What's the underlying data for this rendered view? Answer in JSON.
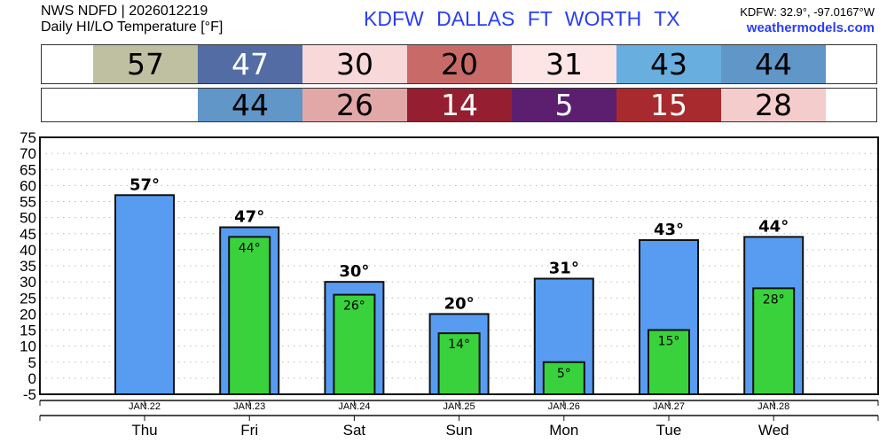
{
  "header": {
    "source": "NWS NDFD | 2026012219",
    "subtitle": "Daily HI/LO Temperature [°F]",
    "title": "KDFW   DALLAS FT WORTH TX",
    "coords": "KDFW: 32.9°, -97.0167°W",
    "site": "weathermodels.com"
  },
  "hi_cells": [
    {
      "value": "57",
      "bg": "#bfc0a2",
      "fg": "#000000"
    },
    {
      "value": "47",
      "bg": "#536ca4",
      "fg": "#ffffff"
    },
    {
      "value": "30",
      "bg": "#f8d8d9",
      "fg": "#000000"
    },
    {
      "value": "20",
      "bg": "#c76a68",
      "fg": "#000000"
    },
    {
      "value": "31",
      "bg": "#fde5e6",
      "fg": "#000000"
    },
    {
      "value": "43",
      "bg": "#68aede",
      "fg": "#000000"
    },
    {
      "value": "44",
      "bg": "#6096c8",
      "fg": "#000000"
    }
  ],
  "lo_cells": [
    null,
    {
      "value": "44",
      "bg": "#6096c8",
      "fg": "#000000"
    },
    {
      "value": "26",
      "bg": "#e2a8a8",
      "fg": "#000000"
    },
    {
      "value": "14",
      "bg": "#951f30",
      "fg": "#ffffff"
    },
    {
      "value": "5",
      "bg": "#5c1f70",
      "fg": "#ffffff"
    },
    {
      "value": "15",
      "bg": "#a82a2e",
      "fg": "#ffffff"
    },
    {
      "value": "28",
      "bg": "#f5cccc",
      "fg": "#000000"
    }
  ],
  "chart_data": {
    "type": "bar",
    "categories": [
      "Thu",
      "Fri",
      "Sat",
      "Sun",
      "Mon",
      "Tue",
      "Wed"
    ],
    "dates": [
      "JAN.22",
      "JAN.23",
      "JAN.24",
      "JAN.25",
      "JAN.26",
      "JAN.27",
      "JAN.28"
    ],
    "series": [
      {
        "name": "HI",
        "values": [
          57,
          47,
          30,
          20,
          31,
          43,
          44
        ],
        "color": "#579cf0"
      },
      {
        "name": "LO",
        "values": [
          null,
          44,
          26,
          14,
          5,
          15,
          28
        ],
        "color": "#39d23c"
      }
    ],
    "ylim": [
      -5,
      75
    ],
    "yticks": [
      -5,
      0,
      5,
      10,
      15,
      20,
      25,
      30,
      35,
      40,
      45,
      50,
      55,
      60,
      65,
      70,
      75
    ],
    "grid": true,
    "label_suffix": "°"
  }
}
